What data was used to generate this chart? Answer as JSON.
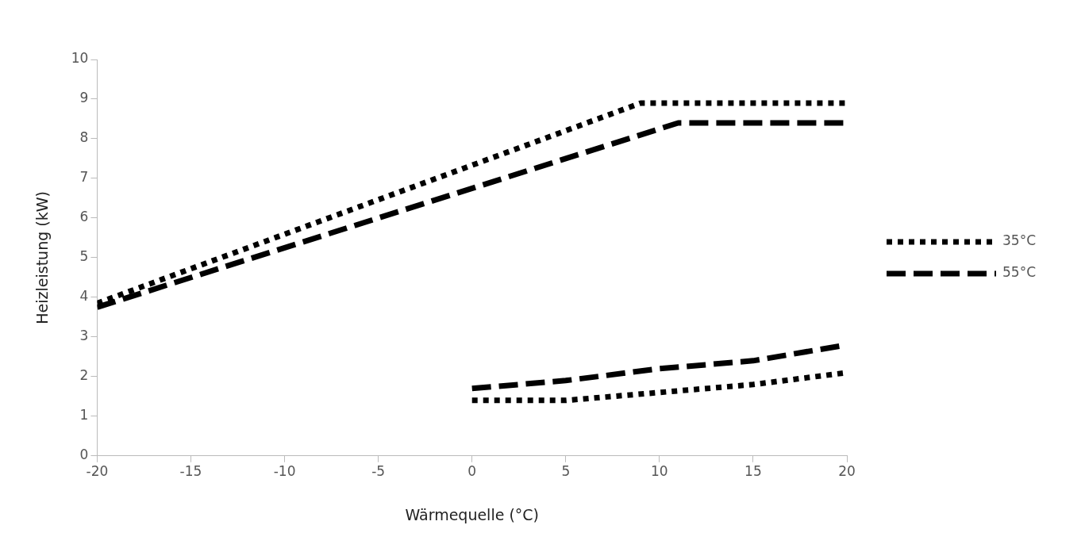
{
  "chart_data": {
    "type": "line",
    "xlabel": "Wärmequelle (°C)",
    "ylabel": "Heizleistung (kW)",
    "xlim": [
      -20,
      20
    ],
    "xticks": [
      -20,
      -15,
      -10,
      -5,
      0,
      5,
      10,
      15,
      20
    ],
    "ylim": [
      0,
      10
    ],
    "yticks": [
      0,
      1,
      2,
      3,
      4,
      5,
      6,
      7,
      8,
      9,
      10
    ],
    "grid": false,
    "legend": "right",
    "marker": "none",
    "series": [
      {
        "name": "35°C",
        "color": "#000000",
        "line_style": "dotted",
        "x": [
          -20,
          9,
          20
        ],
        "values": [
          3.85,
          8.9,
          8.9
        ]
      },
      {
        "name": "55°C",
        "color": "#000000",
        "line_style": "dashed",
        "x": [
          -20,
          11,
          20
        ],
        "values": [
          3.75,
          8.4,
          8.4
        ]
      },
      {
        "color": "#000000",
        "line_style": "dotted",
        "x": [
          0,
          5,
          10,
          15,
          20
        ],
        "values": [
          1.4,
          1.4,
          1.6,
          1.8,
          2.1
        ]
      },
      {
        "color": "#000000",
        "line_style": "dashed",
        "x": [
          0,
          5,
          10,
          15,
          20
        ],
        "values": [
          1.7,
          1.9,
          2.2,
          2.4,
          2.8
        ]
      }
    ]
  }
}
